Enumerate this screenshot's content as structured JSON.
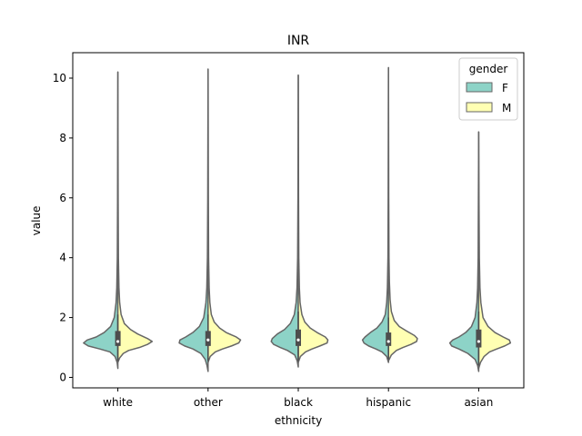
{
  "chart_data": {
    "type": "violin",
    "title": "INR",
    "xlabel": "ethnicity",
    "ylabel": "value",
    "ylim": [
      -0.35,
      10.85
    ],
    "yticks": [
      0,
      2,
      4,
      6,
      8,
      10
    ],
    "categories": [
      "white",
      "other",
      "black",
      "hispanic",
      "asian"
    ],
    "split": true,
    "legend": {
      "title": "gender",
      "position": "top-right",
      "entries": [
        "F",
        "M"
      ]
    },
    "colors": {
      "F": "#8dd3c7",
      "M": "#ffffb3",
      "edge": "#666666",
      "box": "#4d4d4d",
      "median": "#ffffff"
    },
    "series": [
      {
        "name": "F"
      },
      {
        "name": "M"
      }
    ],
    "violins": [
      {
        "category": "white",
        "F": {
          "min": 0.3,
          "max": 10.2,
          "widths": [
            [
              0.3,
              0.0
            ],
            [
              0.5,
              0.02
            ],
            [
              0.7,
              0.08
            ],
            [
              0.85,
              0.22
            ],
            [
              0.95,
              0.5
            ],
            [
              1.05,
              0.82
            ],
            [
              1.15,
              0.95
            ],
            [
              1.25,
              0.85
            ],
            [
              1.35,
              0.6
            ],
            [
              1.5,
              0.38
            ],
            [
              1.7,
              0.2
            ],
            [
              2.0,
              0.1
            ],
            [
              2.5,
              0.05
            ],
            [
              3.0,
              0.03
            ],
            [
              4.0,
              0.015
            ],
            [
              6.0,
              0.008
            ],
            [
              10.2,
              0.0
            ]
          ]
        },
        "M": {
          "min": 0.5,
          "max": 10.2,
          "widths": [
            [
              0.5,
              0.0
            ],
            [
              0.65,
              0.05
            ],
            [
              0.8,
              0.15
            ],
            [
              0.9,
              0.3
            ],
            [
              1.0,
              0.6
            ],
            [
              1.1,
              0.82
            ],
            [
              1.2,
              0.95
            ],
            [
              1.3,
              0.82
            ],
            [
              1.45,
              0.55
            ],
            [
              1.6,
              0.35
            ],
            [
              1.8,
              0.18
            ],
            [
              2.1,
              0.09
            ],
            [
              2.5,
              0.05
            ],
            [
              3.0,
              0.03
            ],
            [
              4.0,
              0.015
            ],
            [
              6.0,
              0.008
            ],
            [
              10.2,
              0.0
            ]
          ]
        },
        "box": {
          "q1": 1.05,
          "median": 1.2,
          "q3": 1.55,
          "whisker_low": 0.55,
          "whisker_high": 2.1
        }
      },
      {
        "category": "other",
        "F": {
          "min": 0.2,
          "max": 10.3,
          "widths": [
            [
              0.2,
              0.0
            ],
            [
              0.4,
              0.03
            ],
            [
              0.6,
              0.08
            ],
            [
              0.8,
              0.2
            ],
            [
              0.95,
              0.42
            ],
            [
              1.05,
              0.65
            ],
            [
              1.15,
              0.8
            ],
            [
              1.25,
              0.78
            ],
            [
              1.35,
              0.62
            ],
            [
              1.5,
              0.42
            ],
            [
              1.7,
              0.24
            ],
            [
              2.0,
              0.12
            ],
            [
              2.5,
              0.06
            ],
            [
              3.0,
              0.035
            ],
            [
              4.0,
              0.018
            ],
            [
              6.0,
              0.009
            ],
            [
              10.3,
              0.0
            ]
          ]
        },
        "M": {
          "min": 0.5,
          "max": 10.3,
          "widths": [
            [
              0.5,
              0.0
            ],
            [
              0.7,
              0.06
            ],
            [
              0.85,
              0.2
            ],
            [
              0.95,
              0.4
            ],
            [
              1.05,
              0.65
            ],
            [
              1.15,
              0.85
            ],
            [
              1.25,
              0.9
            ],
            [
              1.35,
              0.78
            ],
            [
              1.5,
              0.5
            ],
            [
              1.65,
              0.32
            ],
            [
              1.85,
              0.17
            ],
            [
              2.1,
              0.09
            ],
            [
              2.5,
              0.05
            ],
            [
              3.0,
              0.03
            ],
            [
              4.0,
              0.015
            ],
            [
              6.0,
              0.008
            ],
            [
              10.3,
              0.0
            ]
          ]
        },
        "box": {
          "q1": 1.05,
          "median": 1.25,
          "q3": 1.55,
          "whisker_low": 0.55,
          "whisker_high": 2.1
        }
      },
      {
        "category": "black",
        "F": {
          "min": 0.35,
          "max": 10.1,
          "widths": [
            [
              0.35,
              0.0
            ],
            [
              0.55,
              0.03
            ],
            [
              0.75,
              0.1
            ],
            [
              0.9,
              0.3
            ],
            [
              1.0,
              0.5
            ],
            [
              1.1,
              0.68
            ],
            [
              1.2,
              0.75
            ],
            [
              1.3,
              0.72
            ],
            [
              1.45,
              0.58
            ],
            [
              1.6,
              0.38
            ],
            [
              1.8,
              0.22
            ],
            [
              2.1,
              0.11
            ],
            [
              2.5,
              0.06
            ],
            [
              3.0,
              0.035
            ],
            [
              4.0,
              0.018
            ],
            [
              6.0,
              0.009
            ],
            [
              10.1,
              0.0
            ]
          ]
        },
        "M": {
          "min": 0.5,
          "max": 10.1,
          "widths": [
            [
              0.5,
              0.0
            ],
            [
              0.7,
              0.06
            ],
            [
              0.85,
              0.2
            ],
            [
              0.95,
              0.38
            ],
            [
              1.05,
              0.6
            ],
            [
              1.15,
              0.8
            ],
            [
              1.25,
              0.82
            ],
            [
              1.35,
              0.75
            ],
            [
              1.5,
              0.52
            ],
            [
              1.65,
              0.33
            ],
            [
              1.85,
              0.18
            ],
            [
              2.1,
              0.1
            ],
            [
              2.5,
              0.05
            ],
            [
              3.0,
              0.03
            ],
            [
              4.0,
              0.015
            ],
            [
              6.0,
              0.008
            ],
            [
              10.1,
              0.0
            ]
          ]
        },
        "box": {
          "q1": 1.05,
          "median": 1.25,
          "q3": 1.6,
          "whisker_low": 0.55,
          "whisker_high": 2.2
        }
      },
      {
        "category": "hispanic",
        "F": {
          "min": 0.5,
          "max": 10.35,
          "widths": [
            [
              0.5,
              0.0
            ],
            [
              0.7,
              0.05
            ],
            [
              0.85,
              0.18
            ],
            [
              0.95,
              0.35
            ],
            [
              1.05,
              0.55
            ],
            [
              1.15,
              0.68
            ],
            [
              1.25,
              0.72
            ],
            [
              1.35,
              0.65
            ],
            [
              1.5,
              0.5
            ],
            [
              1.65,
              0.32
            ],
            [
              1.85,
              0.18
            ],
            [
              2.1,
              0.09
            ],
            [
              2.5,
              0.05
            ],
            [
              3.0,
              0.03
            ],
            [
              4.0,
              0.015
            ],
            [
              6.0,
              0.008
            ],
            [
              10.35,
              0.0
            ]
          ]
        },
        "M": {
          "min": 0.55,
          "max": 10.35,
          "widths": [
            [
              0.55,
              0.0
            ],
            [
              0.75,
              0.08
            ],
            [
              0.9,
              0.22
            ],
            [
              1.0,
              0.4
            ],
            [
              1.1,
              0.62
            ],
            [
              1.2,
              0.78
            ],
            [
              1.3,
              0.8
            ],
            [
              1.4,
              0.72
            ],
            [
              1.55,
              0.5
            ],
            [
              1.7,
              0.3
            ],
            [
              1.9,
              0.16
            ],
            [
              2.2,
              0.08
            ],
            [
              2.6,
              0.045
            ],
            [
              3.2,
              0.025
            ],
            [
              4.0,
              0.014
            ],
            [
              6.0,
              0.007
            ],
            [
              10.35,
              0.0
            ]
          ]
        },
        "box": {
          "q1": 1.05,
          "median": 1.2,
          "q3": 1.5,
          "whisker_low": 0.6,
          "whisker_high": 2.0
        }
      },
      {
        "category": "asian",
        "F": {
          "min": 0.2,
          "max": 8.2,
          "widths": [
            [
              0.2,
              0.0
            ],
            [
              0.4,
              0.03
            ],
            [
              0.6,
              0.1
            ],
            [
              0.8,
              0.3
            ],
            [
              0.95,
              0.55
            ],
            [
              1.05,
              0.75
            ],
            [
              1.15,
              0.8
            ],
            [
              1.25,
              0.72
            ],
            [
              1.35,
              0.55
            ],
            [
              1.5,
              0.36
            ],
            [
              1.7,
              0.2
            ],
            [
              2.0,
              0.1
            ],
            [
              2.5,
              0.05
            ],
            [
              3.0,
              0.03
            ],
            [
              4.0,
              0.015
            ],
            [
              6.0,
              0.008
            ],
            [
              8.2,
              0.0
            ]
          ]
        },
        "M": {
          "min": 0.3,
          "max": 8.2,
          "widths": [
            [
              0.3,
              0.0
            ],
            [
              0.5,
              0.05
            ],
            [
              0.7,
              0.15
            ],
            [
              0.85,
              0.3
            ],
            [
              0.95,
              0.5
            ],
            [
              1.05,
              0.72
            ],
            [
              1.15,
              0.88
            ],
            [
              1.25,
              0.85
            ],
            [
              1.35,
              0.68
            ],
            [
              1.5,
              0.45
            ],
            [
              1.7,
              0.26
            ],
            [
              2.0,
              0.12
            ],
            [
              2.5,
              0.06
            ],
            [
              3.0,
              0.035
            ],
            [
              4.0,
              0.018
            ],
            [
              6.0,
              0.008
            ],
            [
              8.2,
              0.0
            ]
          ]
        },
        "box": {
          "q1": 1.0,
          "median": 1.2,
          "q3": 1.6,
          "whisker_low": 0.4,
          "whisker_high": 2.2
        }
      }
    ]
  }
}
